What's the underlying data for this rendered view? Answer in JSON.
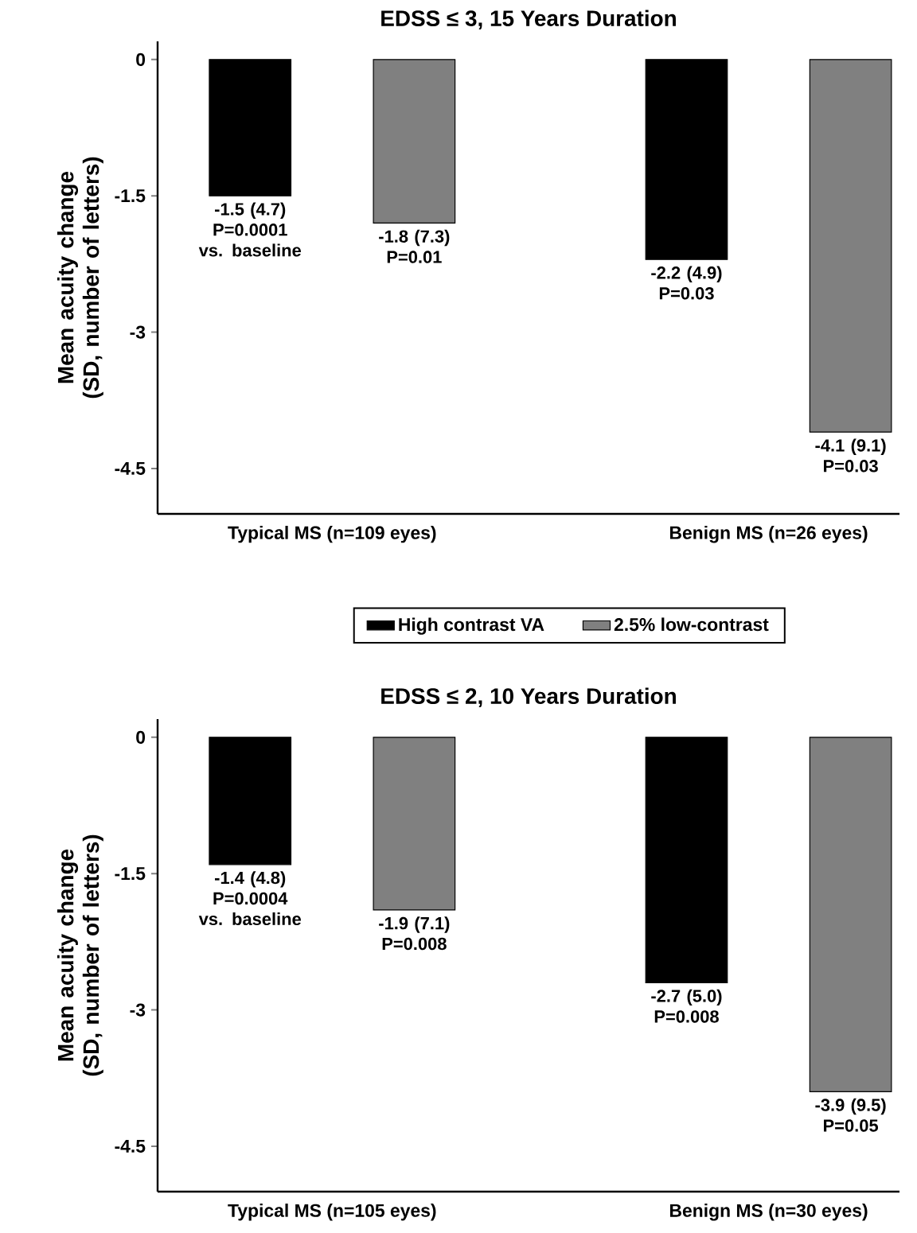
{
  "chart_data": [
    {
      "type": "bar",
      "title": "EDSS ≤ 3, 15 Years Duration",
      "ylabel": "Mean acuity change (SD, number of letters)",
      "categories": [
        "Typical MS (n=109 eyes)",
        "Benign MS (n=26 eyes)"
      ],
      "series": [
        {
          "name": "High contrast VA",
          "color": "#000000",
          "values": [
            -1.5,
            -2.2
          ],
          "value_labels": [
            "-1.5 (4.7) P=0.0001 vs. baseline",
            "-2.2 (4.9) P=0.03"
          ]
        },
        {
          "name": "2.5% low-contrast",
          "color": "#808080",
          "values": [
            -1.8,
            -4.1
          ],
          "value_labels": [
            "-1.8 (7.3) P=0.01",
            "-4.1 (9.1) P=0.03"
          ]
        }
      ],
      "ylim": [
        -5,
        0.2
      ],
      "yticks": [
        0,
        -1.5,
        -3,
        -4.5
      ],
      "legend": "bottom"
    },
    {
      "type": "bar",
      "title": "EDSS ≤ 2, 10 Years Duration",
      "ylabel": "Mean acuity change (SD, number of letters)",
      "categories": [
        "Typical MS (n=105 eyes)",
        "Benign MS (n=30 eyes)"
      ],
      "series": [
        {
          "color": "#000000",
          "values": [
            -1.4,
            -2.7
          ],
          "value_labels": [
            "-1.4 (4.8) P=0.0004 vs. baseline",
            "-2.7 (5.0) P=0.008"
          ]
        },
        {
          "color": "#808080",
          "values": [
            -1.9,
            -3.9
          ],
          "value_labels": [
            "-1.9 (7.1) P=0.008",
            "-3.9 (9.5) P=0.05"
          ]
        }
      ],
      "ylim": [
        -5,
        0.2
      ],
      "yticks": [
        0,
        -1.5,
        -3,
        -4.5
      ]
    }
  ]
}
